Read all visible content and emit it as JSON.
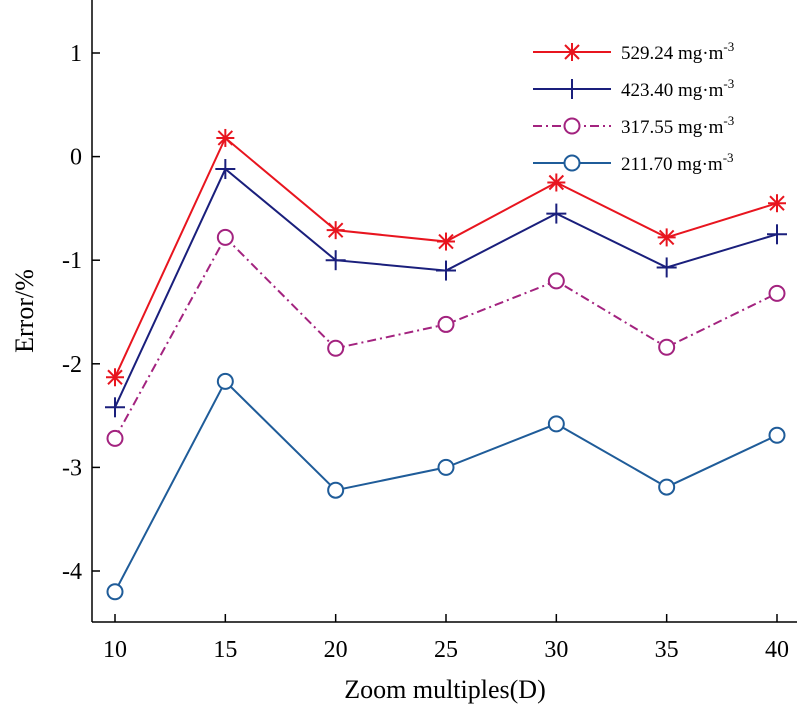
{
  "chart_data": {
    "type": "line",
    "xlabel": "Zoom multiples(D)",
    "ylabel": "Error/%",
    "x": [
      10,
      15,
      20,
      25,
      30,
      35,
      40
    ],
    "xticks": [
      "10",
      "15",
      "20",
      "25",
      "30",
      "35",
      "40"
    ],
    "yticks": [
      "-4",
      "-3",
      "-2",
      "-1",
      "0",
      "1"
    ],
    "xlim": [
      9,
      41
    ],
    "ylim": [
      -4.5,
      1.5
    ],
    "grid": false,
    "legend_position": "top-right",
    "series": [
      {
        "name": "529.24 mg·m",
        "superscript": "-3",
        "marker": "asterisk",
        "dash": "solid",
        "color": "#e8151f",
        "values": [
          -2.13,
          0.18,
          -0.71,
          -0.82,
          -0.25,
          -0.78,
          -0.45
        ]
      },
      {
        "name": "423.40 mg·m",
        "superscript": "-3",
        "marker": "plus",
        "dash": "solid",
        "color": "#1a1f7c",
        "values": [
          -2.42,
          -0.12,
          -1.0,
          -1.1,
          -0.55,
          -1.07,
          -0.75
        ]
      },
      {
        "name": "317.55 mg·m",
        "superscript": "-3",
        "marker": "circle",
        "dash": "dashdot",
        "color": "#a3237f",
        "values": [
          -2.72,
          -0.78,
          -1.85,
          -1.62,
          -1.2,
          -1.84,
          -1.32
        ]
      },
      {
        "name": "211.70 mg·m",
        "superscript": "-3",
        "marker": "circle",
        "dash": "solid",
        "color": "#1f5c99",
        "values": [
          -4.2,
          -2.17,
          -3.22,
          -3.0,
          -2.58,
          -3.19,
          -2.69
        ]
      }
    ]
  }
}
